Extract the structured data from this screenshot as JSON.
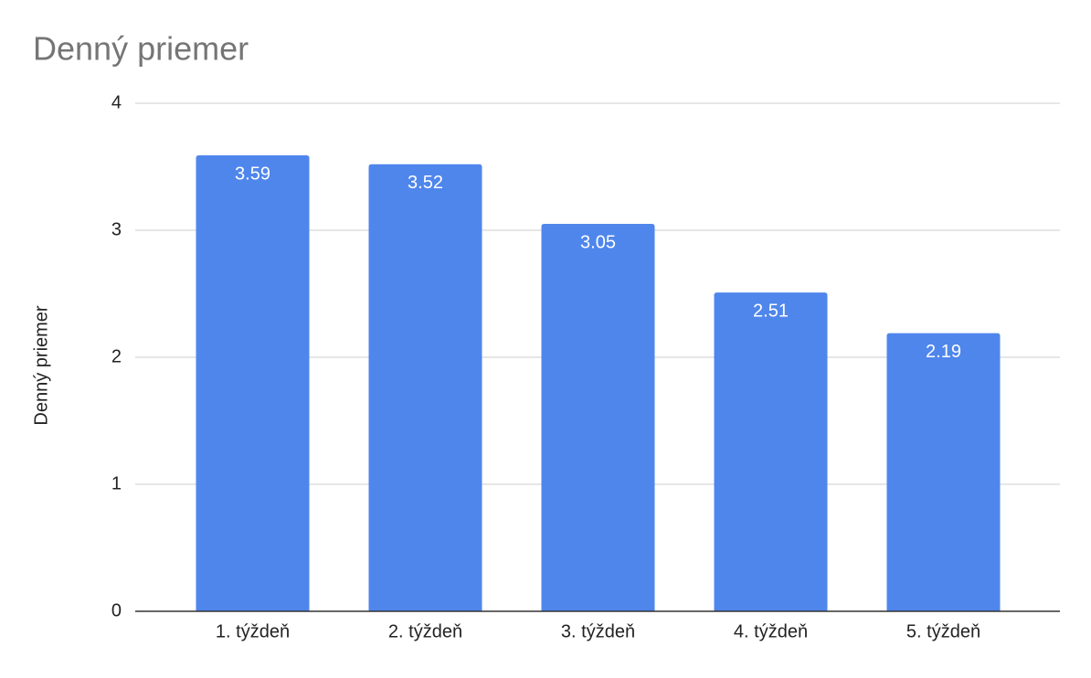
{
  "chart_data": {
    "type": "bar",
    "title": "Denný priemer",
    "y_label": "Denný priemer",
    "categories": [
      "1. týždeň",
      "2. týždeň",
      "3. týždeň",
      "4. týždeň",
      "5. týždeň"
    ],
    "values": [
      3.59,
      3.52,
      3.05,
      2.51,
      2.19
    ],
    "color": "#4f86ec",
    "ylim": [
      0,
      4
    ],
    "yticks": [
      0,
      1,
      2,
      3,
      4
    ],
    "grid": true
  }
}
